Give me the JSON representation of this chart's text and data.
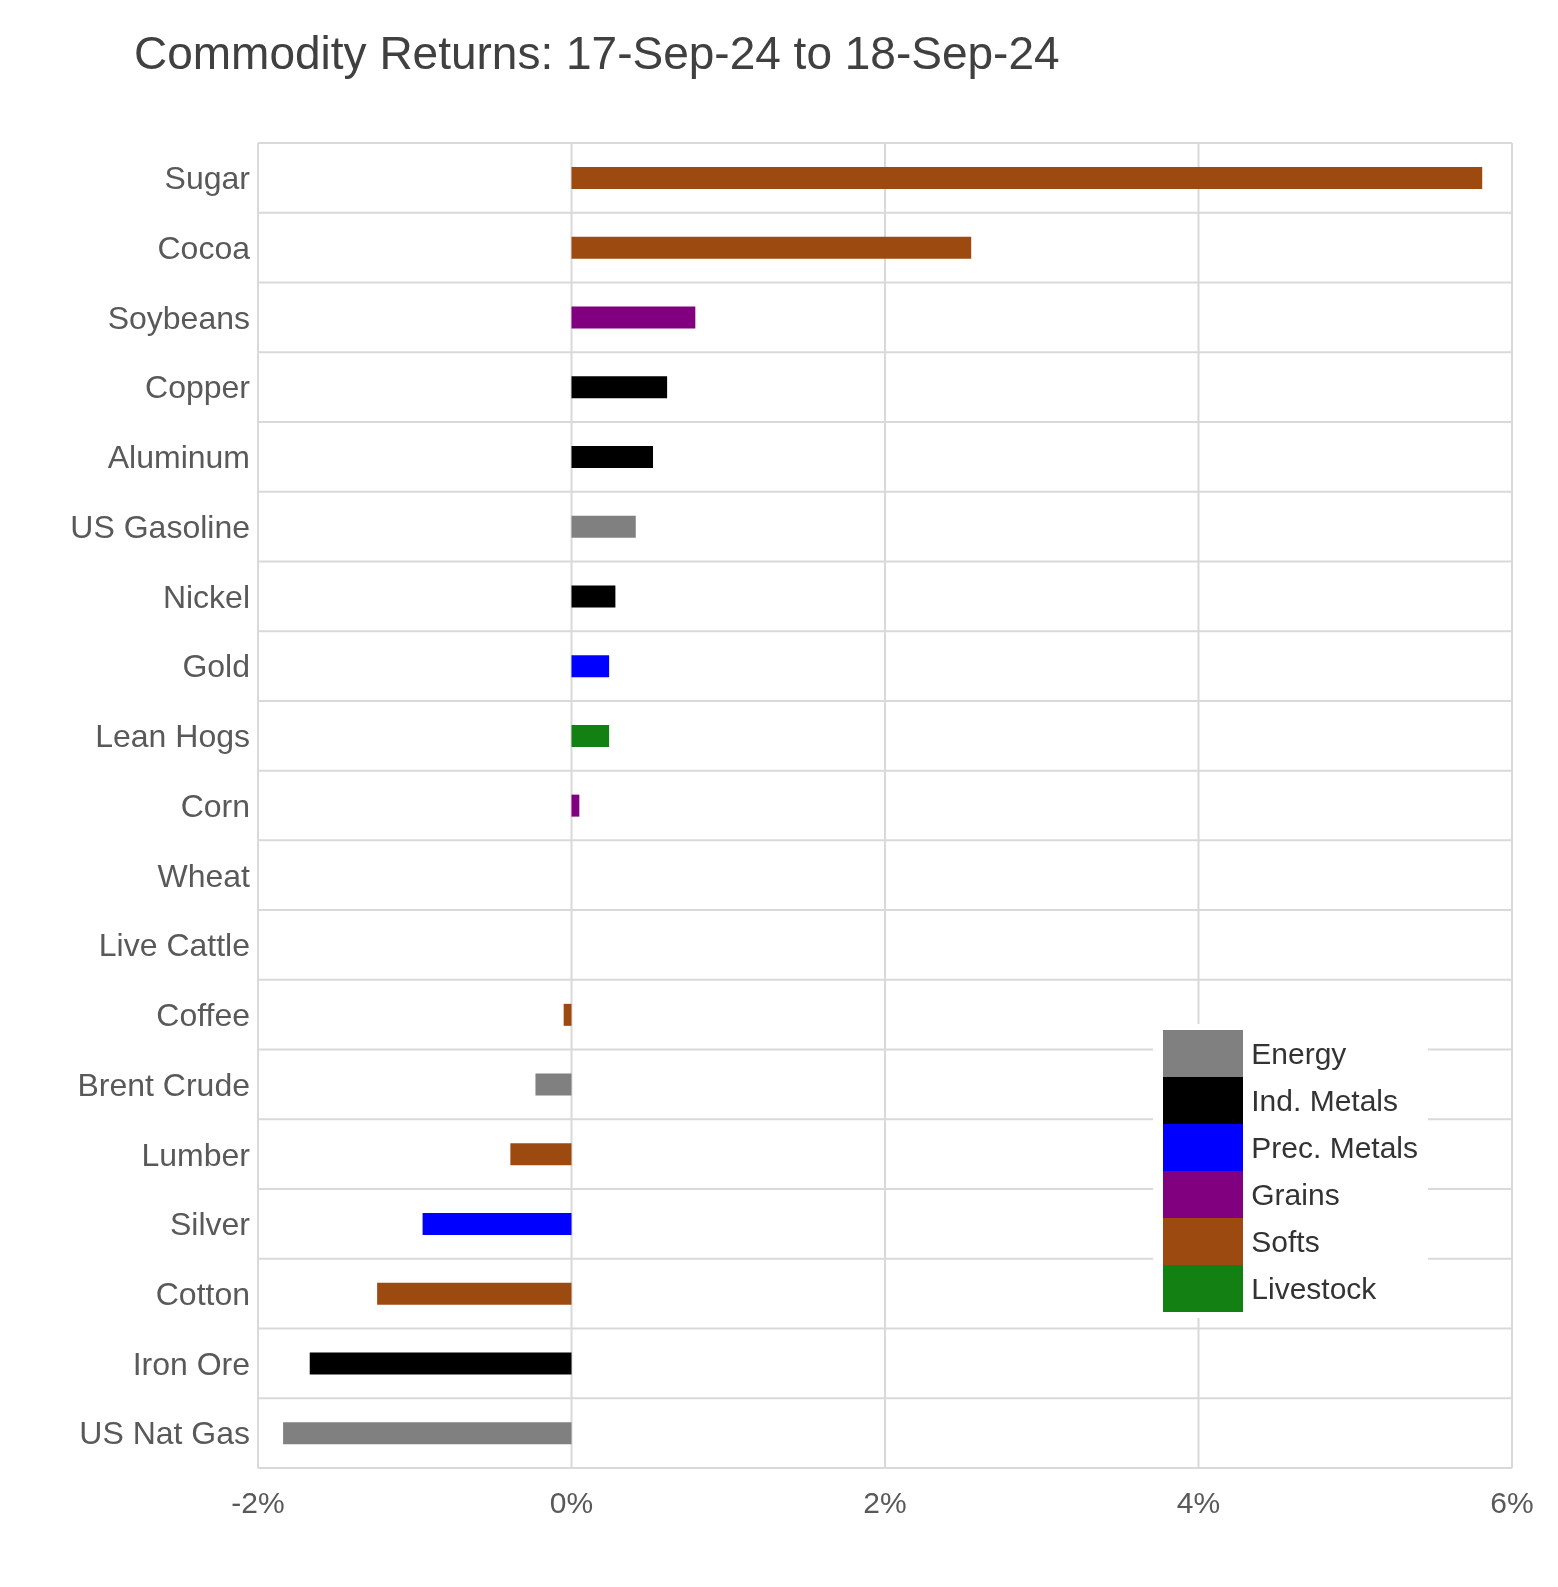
{
  "chart_data": {
    "type": "bar",
    "title": "Commodity Returns: 17-Sep-24 to 18-Sep-24",
    "orientation": "horizontal",
    "stacked": true,
    "categories": [
      "Sugar",
      "Cocoa",
      "Soybeans",
      "Copper",
      "Aluminum",
      "US Gasoline",
      "Nickel",
      "Gold",
      "Lean Hogs",
      "Corn",
      "Wheat",
      "Live Cattle",
      "Coffee",
      "Brent Crude",
      "Lumber",
      "Silver",
      "Cotton",
      "Iron Ore",
      "US Nat Gas"
    ],
    "series": [
      {
        "name": "Energy",
        "color": "#808080",
        "values": [
          null,
          null,
          null,
          null,
          null,
          0.41,
          null,
          null,
          null,
          null,
          null,
          null,
          null,
          -0.23,
          null,
          null,
          null,
          null,
          -1.84
        ]
      },
      {
        "name": "Ind. Metals",
        "color": "#000000",
        "values": [
          null,
          null,
          null,
          0.61,
          0.52,
          null,
          0.28,
          null,
          null,
          null,
          null,
          null,
          null,
          null,
          null,
          null,
          null,
          -1.67,
          null
        ]
      },
      {
        "name": "Prec. Metals",
        "color": "#0000ff",
        "values": [
          null,
          null,
          null,
          null,
          null,
          null,
          null,
          0.24,
          null,
          null,
          null,
          null,
          null,
          null,
          null,
          -0.95,
          null,
          null,
          null
        ]
      },
      {
        "name": "Grains",
        "color": "#800080",
        "values": [
          null,
          null,
          0.79,
          null,
          null,
          null,
          null,
          null,
          null,
          0.05,
          0,
          null,
          null,
          null,
          null,
          null,
          null,
          null,
          null
        ]
      },
      {
        "name": "Softs",
        "color": "#9c4a10",
        "values": [
          5.81,
          2.55,
          null,
          null,
          null,
          null,
          null,
          null,
          null,
          null,
          null,
          null,
          -0.05,
          null,
          -0.39,
          null,
          -1.24,
          null,
          null
        ]
      },
      {
        "name": "Livestock",
        "color": "#138013",
        "values": [
          null,
          null,
          null,
          null,
          null,
          null,
          null,
          null,
          0.24,
          null,
          null,
          0,
          null,
          null,
          null,
          null,
          null,
          null,
          null
        ]
      }
    ],
    "xlim": [
      -2,
      6
    ],
    "xticks": [
      {
        "value": -2,
        "label": "-2%"
      },
      {
        "value": 0,
        "label": "0%"
      },
      {
        "value": 2,
        "label": "2%"
      },
      {
        "value": 4,
        "label": "4%"
      },
      {
        "value": 6,
        "label": "6%"
      }
    ],
    "grid": true,
    "legend": "bottom right"
  }
}
